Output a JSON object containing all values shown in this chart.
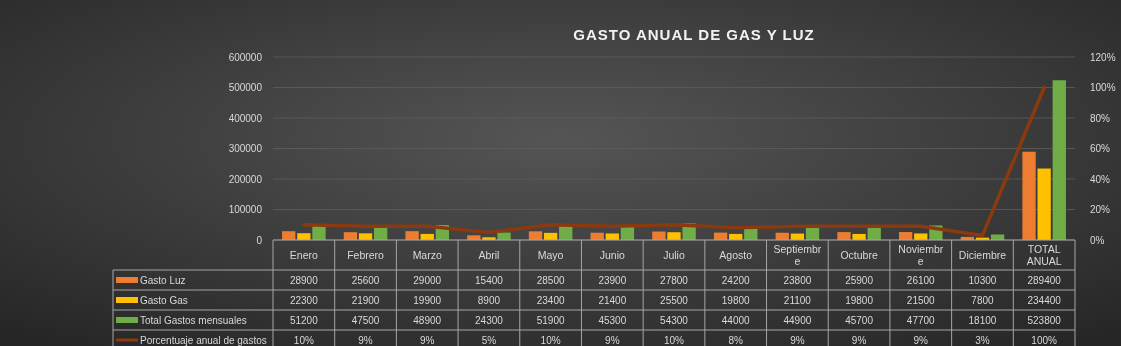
{
  "chart_data": {
    "type": "bar",
    "title": "GASTO  ANUAL DE GAS Y LUZ",
    "categories": [
      "Enero",
      "Febrero",
      "Marzo",
      "Abril",
      "Mayo",
      "Junio",
      "Julio",
      "Agosto",
      "Septiembre",
      "Octubre",
      "Noviembre",
      "Diciembre",
      "TOTAL ANUAL"
    ],
    "series": [
      {
        "name": "Gasto Luz",
        "color": "#ed7d31",
        "values": [
          28900,
          25600,
          29000,
          15400,
          28500,
          23900,
          27800,
          24200,
          23800,
          25900,
          26100,
          10300,
          289400
        ]
      },
      {
        "name": "Gasto Gas",
        "color": "#ffc000",
        "values": [
          22300,
          21900,
          19900,
          8900,
          23400,
          21400,
          25500,
          19800,
          21100,
          19800,
          21500,
          7800,
          234400
        ]
      },
      {
        "name": "Total Gastos mensuales",
        "color": "#70ad47",
        "values": [
          51200,
          47500,
          48900,
          24300,
          51900,
          45300,
          54300,
          44000,
          44900,
          45700,
          47700,
          18100,
          523800
        ]
      },
      {
        "name": "Porcentuaje anual de gastos",
        "type": "line",
        "axis": "y2",
        "color": "#8b3a0f",
        "values": [
          10,
          9,
          9,
          5,
          10,
          9,
          10,
          8,
          9,
          9,
          9,
          3,
          100
        ],
        "value_labels": [
          "10%",
          "9%",
          "9%",
          "5%",
          "10%",
          "9%",
          "10%",
          "8%",
          "9%",
          "9%",
          "9%",
          "3%",
          "100%"
        ]
      }
    ],
    "ylim": [
      0,
      600000
    ],
    "yticks": [
      0,
      100000,
      200000,
      300000,
      400000,
      500000,
      600000
    ],
    "y2lim": [
      0,
      120
    ],
    "y2ticks": [
      {
        "value": 0,
        "label": "0%"
      },
      {
        "value": 20,
        "label": "20%"
      },
      {
        "value": 40,
        "label": "40%"
      },
      {
        "value": 60,
        "label": "60%"
      },
      {
        "value": 80,
        "label": "80%"
      },
      {
        "value": 100,
        "label": "100%"
      },
      {
        "value": 120,
        "label": "120%"
      }
    ],
    "grid": "y",
    "legend": "bottom",
    "data_labels": true
  }
}
